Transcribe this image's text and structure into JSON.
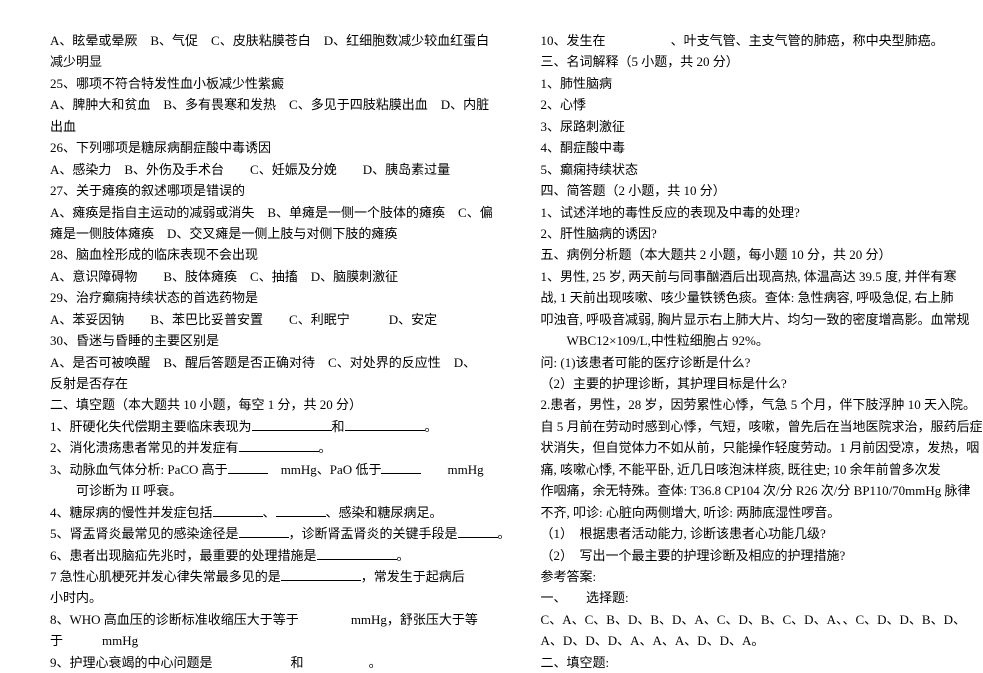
{
  "left": {
    "l1": "A、眩晕或晕厥　B、气促　C、皮肤粘膜苍白　D、红细胞数减少较血红蛋白",
    "l2": "减少明显",
    "l3": "25、哪项不符合特发性血小板减少性紫癜",
    "l4": "A、脾肿大和贫血　B、多有畏寒和发热　C、多见于四肢粘膜出血　D、内脏",
    "l5": "出血",
    "l6": "26、下列哪项是糖尿病酮症酸中毒诱因",
    "l7": "A、感染力　B、外伤及手术台　　C、妊娠及分娩　　D、胰岛素过量",
    "l8": "27、关于瘫痪的叙述哪项是错误的",
    "l9": "A、瘫痪是指自主运动的减弱或消失　B、单瘫是一侧一个肢体的瘫痪　C、偏",
    "l10": "瘫是一侧肢体瘫痪　D、交叉瘫是一侧上肢与对侧下肢的瘫痪",
    "l11": "28、脑血栓形成的临床表现不会出现",
    "l12": "A、意识障碍物　　B、肢体瘫痪　C、抽搐　D、脑膜刺激征",
    "l13": "29、治疗癫痫持续状态的首选药物是",
    "l14": "A、苯妥因钠　　B、苯巴比妥普安置　　C、利眠宁　　　D、安定",
    "l15": "30、昏迷与昏睡的主要区别是",
    "l16": "A、是否可被唤醒　B、醒后答题是否正确对待　C、对处界的反应性　D、",
    "l17": "反射是否存在",
    "l18": "二、填空题（本大题共 10 小题，每空 1 分，共 20 分）",
    "l19a": "1、肝硬化失代偿期主要临床表现为",
    "l19b": "和",
    "l19c": "。",
    "l20a": "2、消化溃疡患者常见的并发症有",
    "l20b": "。",
    "l21a": "3、动脉血气体分析: PaCO 高于",
    "l21b": "mmHg、PaO 低于",
    "l21c": "mmHg",
    "l22": "可诊断为 II 呼衰。",
    "l23a": "4、糖尿病的慢性并发症包括",
    "l23b": "、",
    "l23c": "、感染和糖尿病足。",
    "l24a": "5、肾盂肾炎最常见的感染途径是",
    "l24b": "，诊断肾盂肾炎的关键手段是",
    "l24c": "。",
    "l25a": "6、患者出现脑疝先兆时，最重要的处理措施是",
    "l25b": "。",
    "l26a": "7 急性心肌梗死并发心律失常最多见的是",
    "l26b": "，常发生于起病后",
    "l27": "小时内。",
    "l28a": "8、WHO 高血压的诊断标准收缩压大于等于",
    "l28b": "mmHg，舒张压大于等",
    "l29a": "于",
    "l29b": "mmHg",
    "l30a": "9、护理心衰竭的中心问题是",
    "l30b": "和",
    "l30c": "。"
  },
  "right": {
    "r1a": "10、发生在",
    "r1b": "、叶支气管、主支气管的肺癌，称中央型肺癌。",
    "r2": "三、名词解释（5 小题，共 20 分）",
    "r3": "1、肺性脑病",
    "r4": "2、心悸",
    "r5": "3、尿路刺激征",
    "r6": "4、酮症酸中毒",
    "r7": "5、癫痫持续状态",
    "r8": "四、简答题（2 小题，共 10 分）",
    "r9": "1、试述洋地的毒性反应的表现及中毒的处理?",
    "r10": "2、肝性脑病的诱因?",
    "r11": "五、病例分析题（本大题共 2 小题，每小题 10 分，共 20 分）",
    "r12": "1、男性, 25 岁, 两天前与同事酗酒后出现高热, 体温高达 39.5 度, 并伴有寒",
    "r13": "战, 1 天前出现咳嗽、咳少量铁锈色痰。查体: 急性病容, 呼吸急促, 右上肺",
    "r14": "叩浊音, 呼吸音减弱, 胸片显示右上肺大片、均匀一致的密度增高影。血常规",
    "r15": "　　WBC12×109/L,中性粒细胞占 92%。",
    "r16": "问: (1)该患者可能的医疗诊断是什么?",
    "r17": "（2）主要的护理诊断，其护理目标是什么?",
    "r18": "2.患者，男性，28 岁，因劳累性心悸，气急 5 个月，伴下肢浮肿 10 天入院。",
    "r19": "自 5 月前在劳动时感到心悸，气短，咳嗽，曾先后在当地医院求治，服药后症",
    "r20": "状消失，但自觉体力不如从前，只能操作轻度劳动。1 月前因受凉，发热，咽",
    "r21": "痛, 咳嗽心悸, 不能平卧, 近几日咳泡沫样痰, 既往史; 10 余年前曾多次发",
    "r22": "作咽痛，余无特殊。查体: T36.8 CP104 次/分 R26 次/分 BP110/70mmHg 脉律",
    "r23": "不齐, 叩诊: 心脏向两侧增大, 听诊: 两肺底湿性啰音。",
    "r24": "（1）　根据患者活动能力, 诊断该患者心功能几级?",
    "r25": "（2）　写出一个最主要的护理诊断及相应的护理措施?",
    "r26": "参考答案:",
    "r27": "一、　　选择题:",
    "r28": "C、A、C、B、D、B、D、A、C、D、B、C、D、A、、C、D、D、B、D、",
    "r29": "A、D、D、D、A、A、A、D、D、A。",
    "r30": "二、填空题:"
  }
}
